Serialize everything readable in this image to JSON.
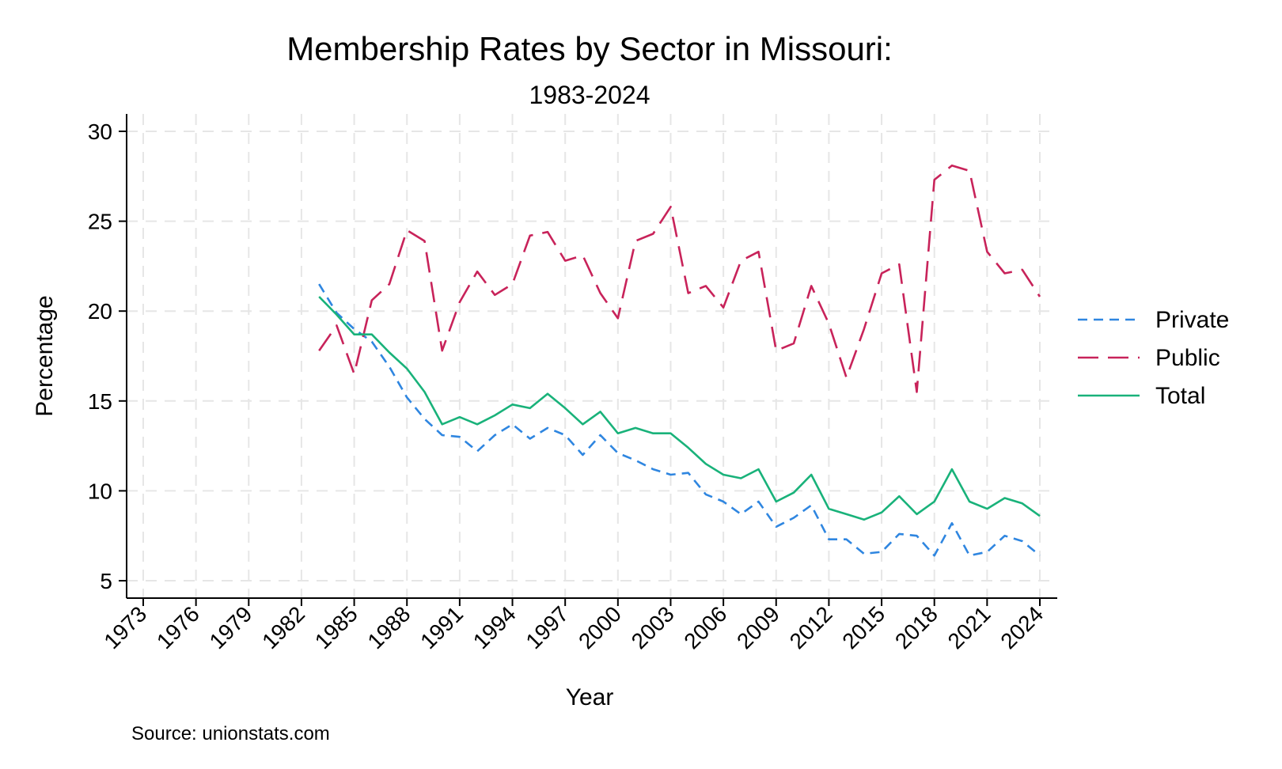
{
  "chart_data": {
    "type": "line",
    "title": "Membership Rates by Sector in Missouri:",
    "subtitle": "1983-2024",
    "xlabel": "Year",
    "ylabel": "Percentage",
    "source": "Source: unionstats.com",
    "xlim": [
      1973,
      2024
    ],
    "ylim": [
      5,
      30
    ],
    "x_ticks": [
      1973,
      1976,
      1979,
      1982,
      1985,
      1988,
      1991,
      1994,
      1997,
      2000,
      2003,
      2006,
      2009,
      2012,
      2015,
      2018,
      2021,
      2024
    ],
    "y_ticks": [
      5,
      10,
      15,
      20,
      25,
      30
    ],
    "grid": true,
    "legend_position": "right",
    "x": [
      1983,
      1984,
      1985,
      1986,
      1987,
      1988,
      1989,
      1990,
      1991,
      1992,
      1993,
      1994,
      1995,
      1996,
      1997,
      1998,
      1999,
      2000,
      2001,
      2002,
      2003,
      2004,
      2005,
      2006,
      2007,
      2008,
      2009,
      2010,
      2011,
      2012,
      2013,
      2014,
      2015,
      2016,
      2017,
      2018,
      2019,
      2020,
      2021,
      2022,
      2023,
      2024
    ],
    "series": [
      {
        "name": "Private",
        "color": "#2f86e0",
        "dash": "short",
        "values": [
          21.5,
          19.9,
          19.0,
          18.3,
          16.9,
          15.2,
          14.0,
          13.1,
          13.0,
          12.2,
          13.1,
          13.7,
          12.9,
          13.5,
          13.1,
          12.0,
          13.1,
          12.1,
          11.7,
          11.2,
          10.9,
          11.0,
          9.8,
          9.4,
          8.7,
          9.4,
          8.0,
          8.5,
          9.2,
          7.3,
          7.3,
          6.5,
          6.6,
          7.6,
          7.5,
          6.4,
          8.2,
          6.4,
          6.6,
          7.5,
          7.2,
          6.4
        ]
      },
      {
        "name": "Public",
        "color": "#c8235a",
        "dash": "long",
        "values": [
          17.8,
          19.2,
          16.5,
          20.6,
          21.5,
          24.5,
          23.9,
          17.8,
          20.5,
          22.2,
          20.9,
          21.5,
          24.2,
          24.4,
          22.8,
          23.1,
          21.0,
          19.6,
          23.9,
          24.3,
          25.8,
          21.0,
          21.4,
          20.2,
          22.8,
          23.3,
          17.8,
          18.2,
          21.4,
          19.3,
          16.3,
          19.0,
          22.1,
          22.6,
          15.5,
          27.3,
          28.1,
          27.8,
          23.3,
          22.1,
          22.3,
          20.8
        ]
      },
      {
        "name": "Total",
        "color": "#19b27a",
        "dash": "solid",
        "values": [
          20.8,
          19.8,
          18.7,
          18.7,
          17.7,
          16.8,
          15.5,
          13.7,
          14.1,
          13.7,
          14.2,
          14.8,
          14.6,
          15.4,
          14.6,
          13.7,
          14.4,
          13.2,
          13.5,
          13.2,
          13.2,
          12.4,
          11.5,
          10.9,
          10.7,
          11.2,
          9.4,
          9.9,
          10.9,
          9.0,
          8.7,
          8.4,
          8.8,
          9.7,
          8.7,
          9.4,
          11.2,
          9.4,
          9.0,
          9.6,
          9.3,
          8.6
        ]
      }
    ]
  }
}
